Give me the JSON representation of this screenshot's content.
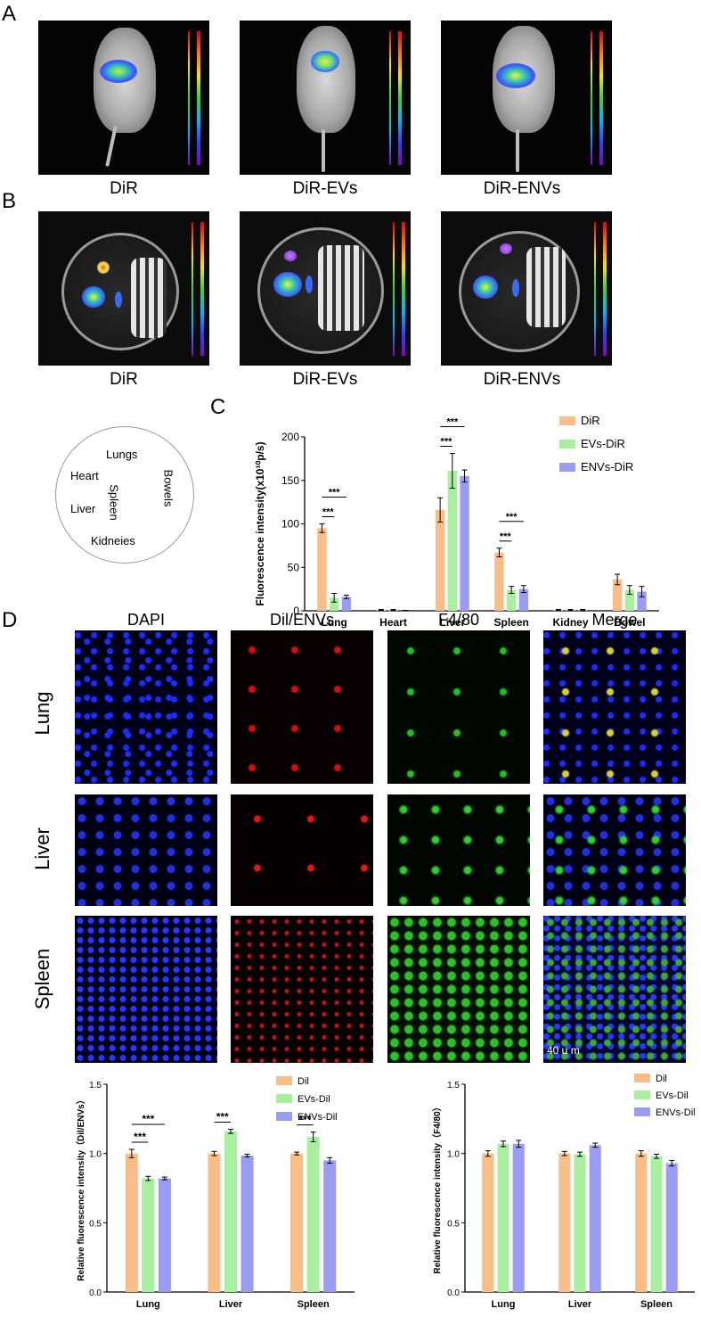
{
  "panels": {
    "a": "A",
    "b": "B",
    "c": "C",
    "d": "D"
  },
  "panel_a_captions": [
    "DiR",
    "DiR-EVs",
    "DiR-ENVs"
  ],
  "panel_b_captions": [
    "DiR",
    "DiR-EVs",
    "DiR-ENVs"
  ],
  "organ_map": {
    "lungs": "Lungs",
    "heart": "Heart",
    "spleen": "Spleen",
    "liver": "Liver",
    "kidneys": "Kidneies",
    "bowels": "Bowels"
  },
  "panel_d_columns": [
    "DAPI",
    "Dil/ENVs",
    "F4/80",
    "Merge"
  ],
  "panel_d_rows": [
    "Lung",
    "Liver",
    "Spleen"
  ],
  "scale_bar": "40 u m",
  "colors": {
    "orange": "#f9bd87",
    "green": "#a8f0a0",
    "purple": "#9a9cf2"
  },
  "chart_data": [
    {
      "type": "bar",
      "ylabel": "Fluorescence intensity(x10¹⁰p/s)",
      "categories": [
        "Lung",
        "Heart",
        "Liver",
        "Spleen",
        "Kidney",
        "Bowel"
      ],
      "ylim": [
        0,
        200
      ],
      "yticks": [
        "0",
        "50",
        "100",
        "150",
        "200"
      ],
      "series": [
        {
          "name": "DiR",
          "values": [
            95,
            1,
            116,
            67,
            1,
            36
          ],
          "errors": [
            5,
            0.5,
            14,
            5,
            0.5,
            6
          ]
        },
        {
          "name": "EVs-DiR",
          "values": [
            15,
            1,
            161,
            24,
            1,
            24
          ],
          "errors": [
            5,
            0.5,
            20,
            4,
            0.5,
            5
          ]
        },
        {
          "name": "ENVs-DiR",
          "values": [
            16,
            0,
            155,
            25,
            1,
            22
          ],
          "errors": [
            2,
            0.5,
            7,
            4,
            0.5,
            6
          ]
        }
      ],
      "significance": [
        {
          "label": "***",
          "category": "Lung",
          "pair": [
            0,
            1
          ]
        },
        {
          "label": "***",
          "category": "Lung",
          "pair": [
            0,
            2
          ]
        },
        {
          "label": "***",
          "category": "Liver",
          "pair": [
            0,
            1
          ]
        },
        {
          "label": "***",
          "category": "Liver",
          "pair": [
            0,
            2
          ]
        },
        {
          "label": "***",
          "category": "Spleen",
          "pair": [
            0,
            1
          ]
        },
        {
          "label": "***",
          "category": "Spleen",
          "pair": [
            0,
            2
          ]
        }
      ],
      "legend": "top-right"
    },
    {
      "type": "bar",
      "ylabel": "Relative fluorescence intensity（Dil/ENVs）",
      "categories": [
        "Lung",
        "Liver",
        "Spleen"
      ],
      "ylim": [
        0,
        1.5
      ],
      "yticks": [
        "0.0",
        "0.5",
        "1.0",
        "1.5"
      ],
      "series": [
        {
          "name": "Dil",
          "values": [
            1.0,
            1.0,
            1.0
          ],
          "errors": [
            0.03,
            0.015,
            0.01
          ]
        },
        {
          "name": "EVs-Dil",
          "values": [
            0.82,
            1.16,
            1.12
          ],
          "errors": [
            0.015,
            0.015,
            0.035
          ]
        },
        {
          "name": "ENVs-Dil",
          "values": [
            0.82,
            0.985,
            0.95
          ],
          "errors": [
            0.01,
            0.01,
            0.02
          ]
        }
      ],
      "significance": [
        {
          "label": "***",
          "category": "Lung",
          "pair": [
            0,
            1
          ]
        },
        {
          "label": "***",
          "category": "Lung",
          "pair": [
            0,
            2
          ]
        },
        {
          "label": "***",
          "category": "Liver",
          "pair": [
            0,
            1
          ]
        },
        {
          "label": "***",
          "category": "Spleen",
          "pair": [
            0,
            1
          ]
        }
      ],
      "legend": "top-right"
    },
    {
      "type": "bar",
      "ylabel": "Relative fluorescence intensity（F4/80）",
      "categories": [
        "Lung",
        "Liver",
        "Spleen"
      ],
      "ylim": [
        0,
        1.5
      ],
      "yticks": [
        "0.0",
        "0.5",
        "1.0",
        "1.5"
      ],
      "series": [
        {
          "name": "Dil",
          "values": [
            1.0,
            1.0,
            1.0
          ],
          "errors": [
            0.02,
            0.015,
            0.02
          ]
        },
        {
          "name": "EVs-Dil",
          "values": [
            1.07,
            0.995,
            0.98
          ],
          "errors": [
            0.02,
            0.015,
            0.015
          ]
        },
        {
          "name": "ENVs-Dil",
          "values": [
            1.07,
            1.06,
            0.93
          ],
          "errors": [
            0.025,
            0.015,
            0.02
          ]
        }
      ],
      "significance": [],
      "legend": "top-right"
    }
  ]
}
